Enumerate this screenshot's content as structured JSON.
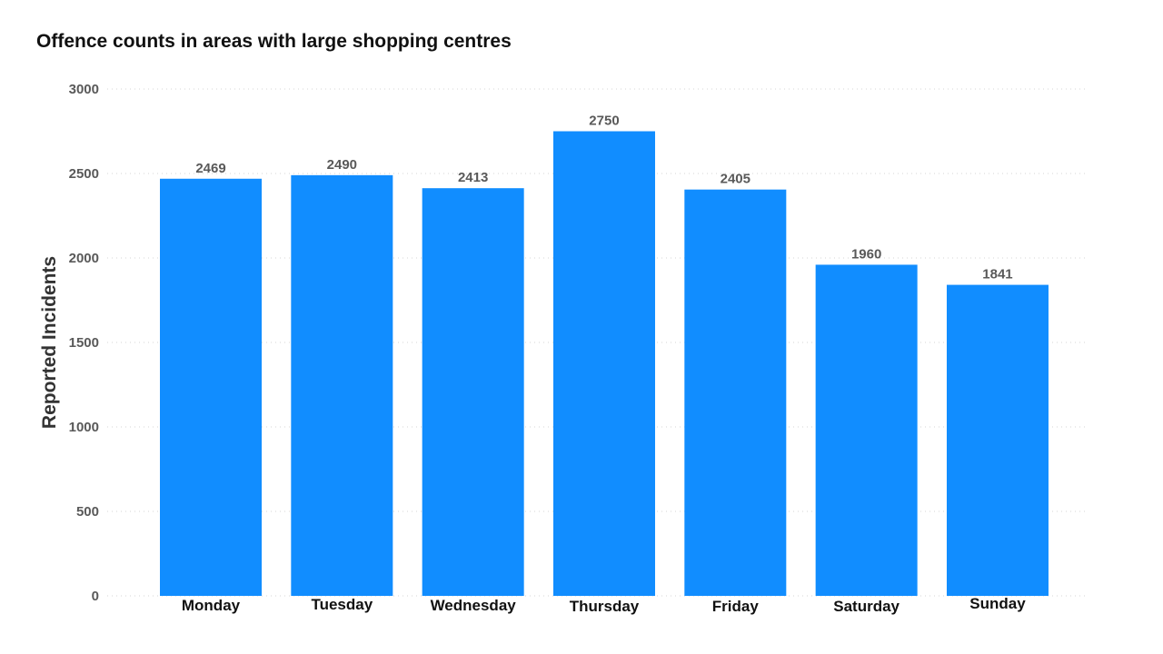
{
  "chart_data": {
    "type": "bar",
    "title": "Offence counts in areas with large shopping centres",
    "xlabel": "",
    "ylabel": "Reported Incidents",
    "categories": [
      "Monday",
      "Tuesday",
      "Wednesday",
      "Thursday",
      "Friday",
      "Saturday",
      "Sunday"
    ],
    "values": [
      2469,
      2490,
      2413,
      2750,
      2405,
      1960,
      1841
    ],
    "ylim": [
      0,
      3000
    ],
    "yticks": [
      0,
      500,
      1000,
      1500,
      2000,
      2500,
      3000
    ],
    "grid": true,
    "data_labels": true,
    "bar_color": "#118DFF"
  }
}
